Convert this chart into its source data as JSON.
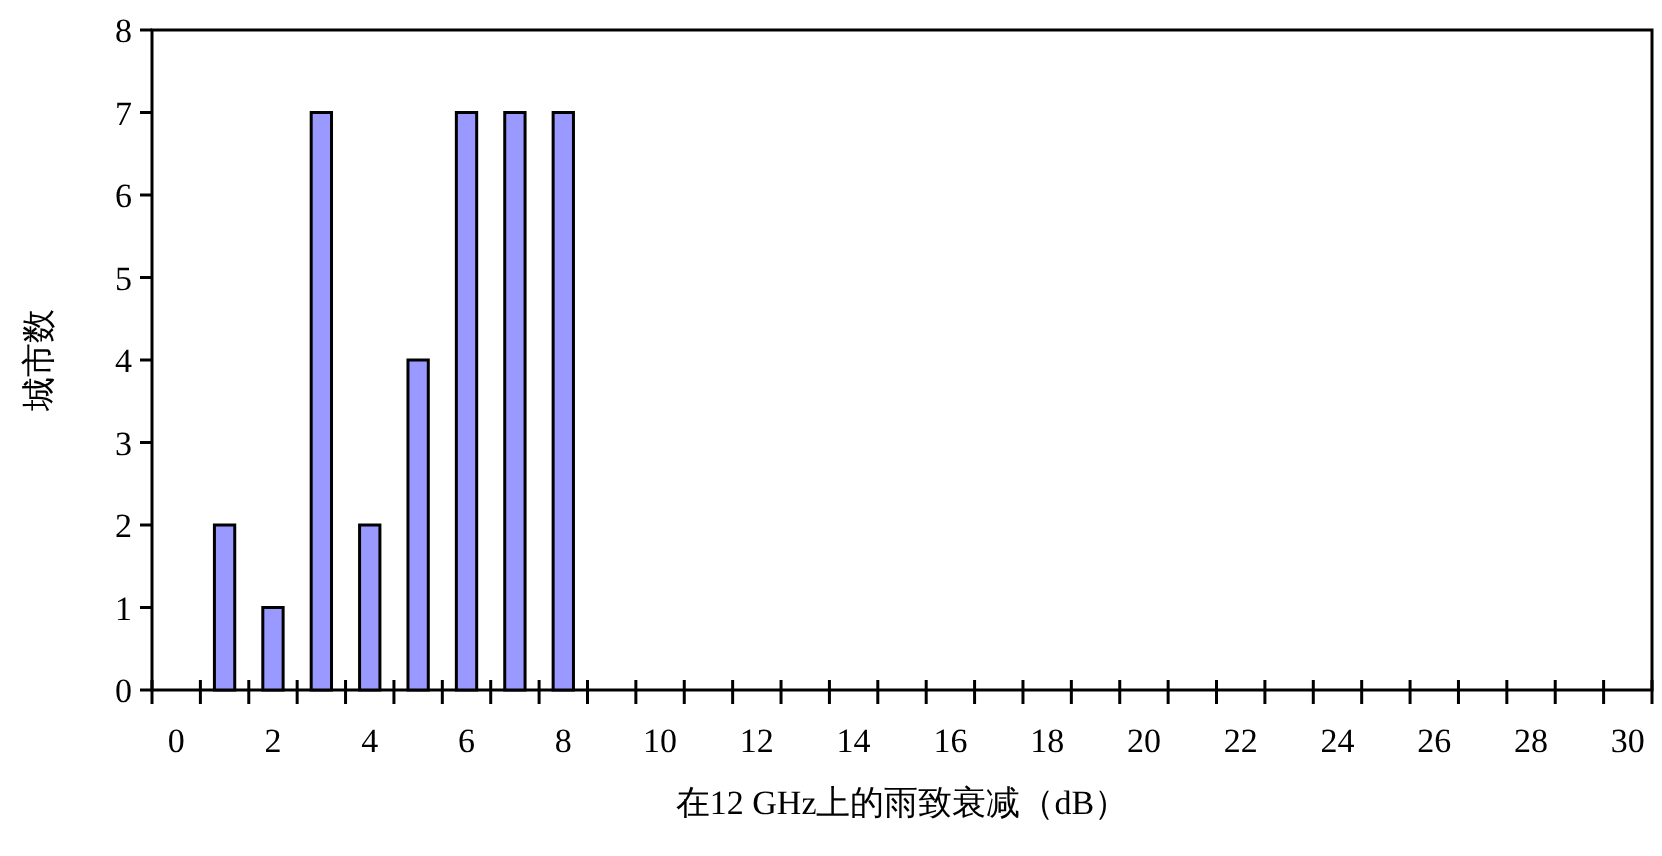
{
  "chart_data": {
    "type": "bar",
    "xlabel": "在12 GHz上的雨致衰减（dB）",
    "ylabel": "城市数",
    "x": [
      1,
      2,
      3,
      4,
      5,
      6,
      7,
      8
    ],
    "values": [
      2,
      1,
      7,
      2,
      4,
      7,
      7,
      7
    ],
    "color": "#9999ff",
    "xlim": [
      -0.5,
      30.5
    ],
    "ylim": [
      0,
      8
    ],
    "yticks": [
      0,
      1,
      2,
      3,
      4,
      5,
      6,
      7,
      8
    ],
    "xticks": [
      0,
      2,
      4,
      6,
      8,
      10,
      12,
      14,
      16,
      18,
      20,
      22,
      24,
      26,
      28,
      30,
      {
        "value": -0.5,
        "label": null
      },
      {
        "value": 0.5,
        "label": null
      },
      {
        "value": 1.5,
        "label": null
      },
      {
        "value": 2.5,
        "label": null
      },
      {
        "value": 3.5,
        "label": null
      },
      {
        "value": 4.5,
        "label": null
      },
      {
        "value": 5.5,
        "label": null
      },
      {
        "value": 6.5,
        "label": null
      },
      {
        "value": 7.5,
        "label": null
      },
      {
        "value": 8.5,
        "label": null
      },
      {
        "value": 9.5,
        "label": null
      },
      {
        "value": 10.5,
        "label": null
      },
      {
        "value": 11.5,
        "label": null
      },
      {
        "value": 12.5,
        "label": null
      },
      {
        "value": 13.5,
        "label": null
      },
      {
        "value": 14.5,
        "label": null
      },
      {
        "value": 15.5,
        "label": null
      },
      {
        "value": 16.5,
        "label": null
      },
      {
        "value": 17.5,
        "label": null
      },
      {
        "value": 18.5,
        "label": null
      },
      {
        "value": 19.5,
        "label": null
      },
      {
        "value": 20.5,
        "label": null
      },
      {
        "value": 21.5,
        "label": null
      },
      {
        "value": 22.5,
        "label": null
      },
      {
        "value": 23.5,
        "label": null
      },
      {
        "value": 24.5,
        "label": null
      },
      {
        "value": 25.5,
        "label": null
      },
      {
        "value": 26.5,
        "label": null
      },
      {
        "value": 27.5,
        "label": null
      },
      {
        "value": 28.5,
        "label": null
      },
      {
        "value": 29.5,
        "label": null
      },
      {
        "value": 30.5,
        "label": null
      }
    ]
  }
}
